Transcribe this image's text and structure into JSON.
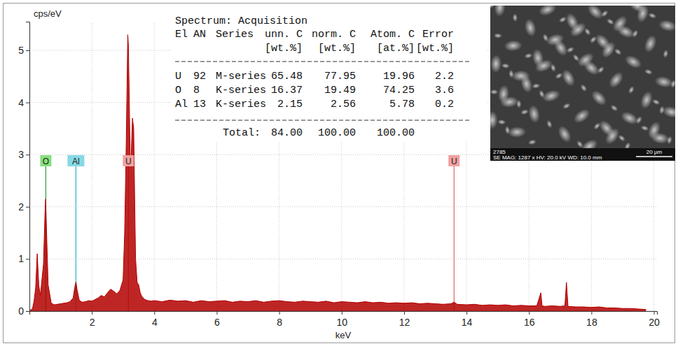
{
  "chart_data": {
    "type": "area",
    "x_label": "keV",
    "y_label": "cps/eV",
    "color": "#b30000",
    "grid": true,
    "xlim": [
      0,
      20.1
    ],
    "ylim": [
      0,
      5.55
    ],
    "xticks": [
      2,
      4,
      6,
      8,
      10,
      12,
      14,
      16,
      18,
      20
    ],
    "yticks": [
      0,
      1,
      2,
      3,
      4,
      5
    ],
    "x": [
      0.0,
      0.1,
      0.15,
      0.2,
      0.25,
      0.3,
      0.35,
      0.4,
      0.45,
      0.5,
      0.52,
      0.55,
      0.6,
      0.7,
      0.8,
      0.9,
      1.0,
      1.1,
      1.2,
      1.3,
      1.4,
      1.45,
      1.49,
      1.53,
      1.6,
      1.7,
      1.8,
      1.9,
      2.0,
      2.1,
      2.2,
      2.3,
      2.4,
      2.5,
      2.6,
      2.7,
      2.8,
      2.9,
      3.0,
      3.05,
      3.1,
      3.15,
      3.17,
      3.2,
      3.23,
      3.26,
      3.3,
      3.34,
      3.37,
      3.4,
      3.45,
      3.5,
      3.55,
      3.6,
      3.7,
      3.8,
      3.9,
      4.0,
      4.25,
      4.5,
      4.75,
      5.0,
      5.25,
      5.5,
      5.75,
      6.0,
      6.25,
      6.5,
      6.75,
      7.0,
      7.25,
      7.5,
      7.75,
      8.0,
      8.25,
      8.5,
      8.75,
      9.0,
      9.25,
      9.5,
      9.75,
      10.0,
      10.25,
      10.5,
      10.75,
      11.0,
      11.25,
      11.5,
      11.75,
      12.0,
      12.25,
      12.5,
      12.75,
      13.0,
      13.25,
      13.5,
      13.6,
      13.7,
      14.0,
      14.25,
      14.5,
      14.75,
      15.0,
      15.25,
      15.5,
      15.75,
      16.0,
      16.25,
      16.38,
      16.42,
      16.5,
      16.75,
      17.0,
      17.15,
      17.2,
      17.25,
      17.5,
      17.75,
      18.0,
      18.25,
      18.5,
      18.75,
      19.0,
      19.25,
      19.5,
      19.75
    ],
    "values": [
      0.0,
      0.05,
      0.2,
      0.45,
      1.1,
      0.5,
      0.3,
      0.6,
      0.9,
      1.9,
      2.15,
      1.5,
      0.5,
      0.15,
      0.12,
      0.13,
      0.14,
      0.15,
      0.16,
      0.18,
      0.25,
      0.45,
      0.56,
      0.4,
      0.2,
      0.17,
      0.18,
      0.2,
      0.19,
      0.22,
      0.25,
      0.3,
      0.27,
      0.35,
      0.42,
      0.38,
      0.33,
      0.4,
      0.6,
      1.5,
      3.2,
      5.3,
      5.1,
      4.0,
      2.8,
      3.0,
      3.7,
      3.5,
      2.2,
      1.0,
      0.55,
      0.5,
      0.35,
      0.28,
      0.22,
      0.2,
      0.19,
      0.2,
      0.18,
      0.21,
      0.19,
      0.2,
      0.17,
      0.2,
      0.18,
      0.19,
      0.2,
      0.17,
      0.19,
      0.18,
      0.2,
      0.17,
      0.19,
      0.2,
      0.18,
      0.17,
      0.19,
      0.18,
      0.17,
      0.19,
      0.16,
      0.18,
      0.17,
      0.16,
      0.18,
      0.16,
      0.17,
      0.15,
      0.16,
      0.15,
      0.16,
      0.14,
      0.15,
      0.14,
      0.13,
      0.14,
      0.17,
      0.13,
      0.12,
      0.13,
      0.11,
      0.12,
      0.11,
      0.12,
      0.1,
      0.11,
      0.1,
      0.1,
      0.35,
      0.1,
      0.09,
      0.1,
      0.09,
      0.1,
      0.55,
      0.09,
      0.08,
      0.08,
      0.07,
      0.08,
      0.06,
      0.06,
      0.05,
      0.05,
      0.04,
      0.03
    ],
    "markers": [
      {
        "label": "O",
        "x": 0.525,
        "color": "#2ca02c",
        "fill": "#86e07c"
      },
      {
        "label": "Al",
        "x": 1.49,
        "color": "#2ab5c9",
        "fill": "#86d9e6"
      },
      {
        "label": "U",
        "x": 3.17,
        "color": "#e06666",
        "fill": "#f2a0a0"
      },
      {
        "label": "U",
        "x": 13.6,
        "color": "#e06666",
        "fill": "#f2a0a0"
      }
    ]
  },
  "table": {
    "title": "Spectrum: Acquisition",
    "header": [
      "El",
      "AN",
      "Series",
      "unn. C",
      "norm. C",
      "Atom. C",
      "Error"
    ],
    "units": [
      null,
      null,
      null,
      "[wt.%]",
      "[wt.%]",
      "[at.%]",
      "[wt.%]"
    ],
    "rows": [
      [
        "U",
        "92",
        "M-series",
        "65.48",
        "77.95",
        "19.96",
        "2.2"
      ],
      [
        "O",
        "8",
        "K-series",
        "16.37",
        "19.49",
        "74.25",
        "3.6"
      ],
      [
        "Al",
        "13",
        "K-series",
        "2.15",
        "2.56",
        "5.78",
        "0.2"
      ]
    ],
    "total": {
      "label": "Total:",
      "values": [
        "84.00",
        "100.00",
        "100.00"
      ]
    }
  },
  "image": {
    "id": "2785",
    "caption": "SE MAG: 1287 x HV: 20.0 kV WD: 10.0 mm",
    "scale_bar": "20 µm"
  }
}
